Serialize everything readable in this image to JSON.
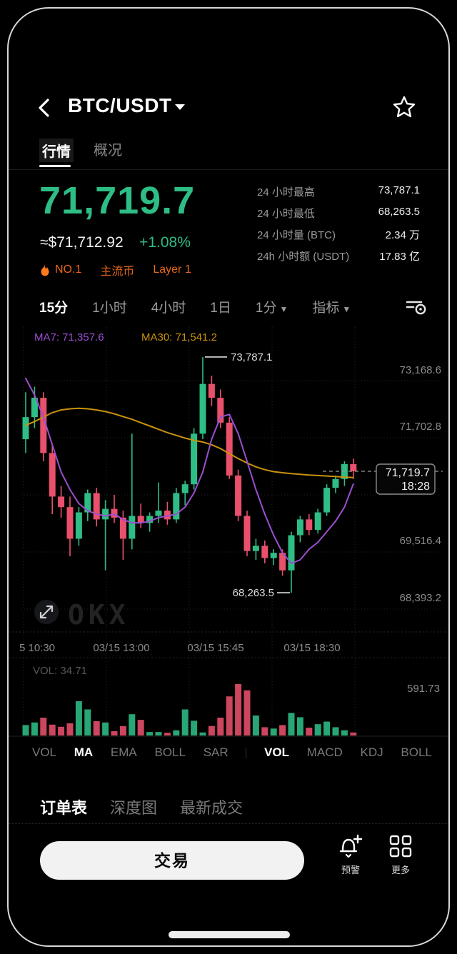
{
  "header": {
    "title": "BTC/USDT"
  },
  "icons": {
    "caret_down": "▼"
  },
  "tabs": [
    {
      "label": "行情",
      "active": true
    },
    {
      "label": "概况",
      "active": false
    }
  ],
  "price": {
    "last": "71,719.7",
    "fiat": "≈$71,712.92",
    "change_pct": "+1.08%"
  },
  "stats": [
    {
      "label": "24 小时最高",
      "value": "73,787.1"
    },
    {
      "label": "24 小时最低",
      "value": "68,263.5"
    },
    {
      "label": "24 小时量 (BTC)",
      "value": "2.34 万"
    },
    {
      "label": "24h 小时额 (USDT)",
      "value": "17.83 亿"
    }
  ],
  "badges": [
    {
      "label": "NO.1",
      "icon": "flame-icon"
    },
    {
      "label": "主流币"
    },
    {
      "label": "Layer 1"
    }
  ],
  "timeframes": [
    {
      "label": "15分",
      "active": true
    },
    {
      "label": "1小时"
    },
    {
      "label": "4小时"
    },
    {
      "label": "1日"
    },
    {
      "label": "1分",
      "dropdown": true
    },
    {
      "label": "指标",
      "dropdown": true
    }
  ],
  "chart_data": {
    "type": "candlestick+volume",
    "legend": {
      "ma7": "MA7: 71,357.6",
      "ma30": "MA30: 71,541.2"
    },
    "y_axis_labels": [
      "73,168.6",
      "71,702.8",
      "69,516.4",
      "68,393.2"
    ],
    "x_axis_labels": [
      "5 10:30",
      "03/15 13:00",
      "03/15 15:45",
      "03/15 18:30"
    ],
    "annotations": {
      "high": {
        "price": 73787.1,
        "label": "73,787.1",
        "candle_index": 20
      },
      "low": {
        "price": 68263.5,
        "label": "68,263.5",
        "candle_index": 30
      },
      "last": {
        "price": 71719.7,
        "label": "71,719.7",
        "time": "18:28"
      }
    },
    "volume_panel": {
      "current_label": "VOL: 34.71",
      "axis_max_label": "591.73",
      "axis_max": 591.73
    },
    "watermark": "OKX",
    "candles_ohlcv": [
      [
        72300,
        73150,
        72050,
        72700,
        120
      ],
      [
        72700,
        73250,
        72500,
        73050,
        150
      ],
      [
        73050,
        73150,
        71900,
        72050,
        205
      ],
      [
        72050,
        72200,
        70500,
        71000,
        125
      ],
      [
        71000,
        71300,
        70400,
        70700,
        100
      ],
      [
        70700,
        71000,
        69300,
        69800,
        140
      ],
      [
        69800,
        70700,
        69600,
        70550,
        395
      ],
      [
        70550,
        71200,
        70300,
        71100,
        300
      ],
      [
        71100,
        71250,
        70150,
        70350,
        165
      ],
      [
        70350,
        70900,
        68900,
        70650,
        150
      ],
      [
        70650,
        71050,
        70250,
        70400,
        50
      ],
      [
        70400,
        70600,
        69200,
        69800,
        108
      ],
      [
        69800,
        72400,
        69500,
        70450,
        245
      ],
      [
        70450,
        70800,
        70100,
        70250,
        180
      ],
      [
        70250,
        70550,
        70000,
        70450,
        40
      ],
      [
        70450,
        71400,
        70250,
        70600,
        40
      ],
      [
        70600,
        70850,
        70200,
        70350,
        32
      ],
      [
        70350,
        71250,
        70250,
        71100,
        60
      ],
      [
        71100,
        71450,
        70750,
        71350,
        300
      ],
      [
        71350,
        72500,
        71200,
        72400,
        170
      ],
      [
        72400,
        73787.1,
        72300,
        73300,
        35
      ],
      [
        73300,
        73450,
        72900,
        73050,
        110
      ],
      [
        73050,
        73200,
        72500,
        72600,
        205
      ],
      [
        72600,
        72700,
        71500,
        71600,
        450
      ],
      [
        71600,
        71750,
        70300,
        70450,
        591.73
      ],
      [
        70450,
        70600,
        69300,
        69450,
        520
      ],
      [
        69450,
        69800,
        69200,
        69600,
        230
      ],
      [
        69600,
        69750,
        69100,
        69250,
        95
      ],
      [
        69250,
        69500,
        69050,
        69400,
        80
      ],
      [
        69400,
        69500,
        68750,
        68900,
        120
      ],
      [
        68900,
        70000,
        68263.5,
        69900,
        260
      ],
      [
        69900,
        70450,
        69700,
        70350,
        210
      ],
      [
        70350,
        70500,
        69900,
        70050,
        90
      ],
      [
        70050,
        70650,
        69950,
        70550,
        130
      ],
      [
        70550,
        71350,
        70450,
        71250,
        160
      ],
      [
        71250,
        71600,
        71100,
        71500,
        95
      ],
      [
        71500,
        71900,
        71300,
        71850,
        60
      ],
      [
        71850,
        71950,
        71500,
        71719.7,
        34.71
      ]
    ],
    "ma7_values": [
      73400,
      73100,
      72700,
      72200,
      71700,
      71200,
      70800,
      70600,
      70500,
      70450,
      70500,
      70350,
      70250,
      70250,
      70300,
      70400,
      70450,
      70500,
      70700,
      71100,
      71700,
      72300,
      72700,
      72750,
      72400,
      71900,
      71200,
      70500,
      69900,
      69400,
      69100,
      69200,
      69500,
      69700,
      70000,
      70300,
      70700,
      71357.6
    ],
    "ma30_values": [
      72550,
      72620,
      72700,
      72780,
      72830,
      72850,
      72860,
      72850,
      72830,
      72800,
      72760,
      72710,
      72660,
      72600,
      72540,
      72480,
      72420,
      72370,
      72320,
      72280,
      72250,
      72200,
      72130,
      72040,
      71950,
      71870,
      71800,
      71750,
      71710,
      71680,
      71655,
      71635,
      71615,
      71600,
      71585,
      71570,
      71555,
      71541.2
    ]
  },
  "indicator_tabs": [
    {
      "label": "VOL",
      "active": false
    },
    {
      "label": "MA",
      "active": true
    },
    {
      "label": "EMA",
      "active": false
    },
    {
      "label": "BOLL",
      "active": false
    },
    {
      "label": "SAR",
      "active": false
    },
    {
      "label": "VOL",
      "active": true
    },
    {
      "label": "MACD",
      "active": false
    },
    {
      "label": "KDJ",
      "active": false
    },
    {
      "label": "BOLL",
      "active": false
    }
  ],
  "bottom_tabs": [
    {
      "label": "订单表",
      "active": true
    },
    {
      "label": "深度图",
      "active": false
    },
    {
      "label": "最新成交",
      "active": false
    }
  ],
  "footer": {
    "trade_label": "交易",
    "alert_label": "预警",
    "more_label": "更多"
  },
  "colors": {
    "up": "#2ebd85",
    "down": "#e8506b",
    "ma7": "#9b4fd0",
    "ma30": "#c9920e",
    "badge_orange": "#e8671c",
    "flame_orange": "#ff7a1f"
  }
}
